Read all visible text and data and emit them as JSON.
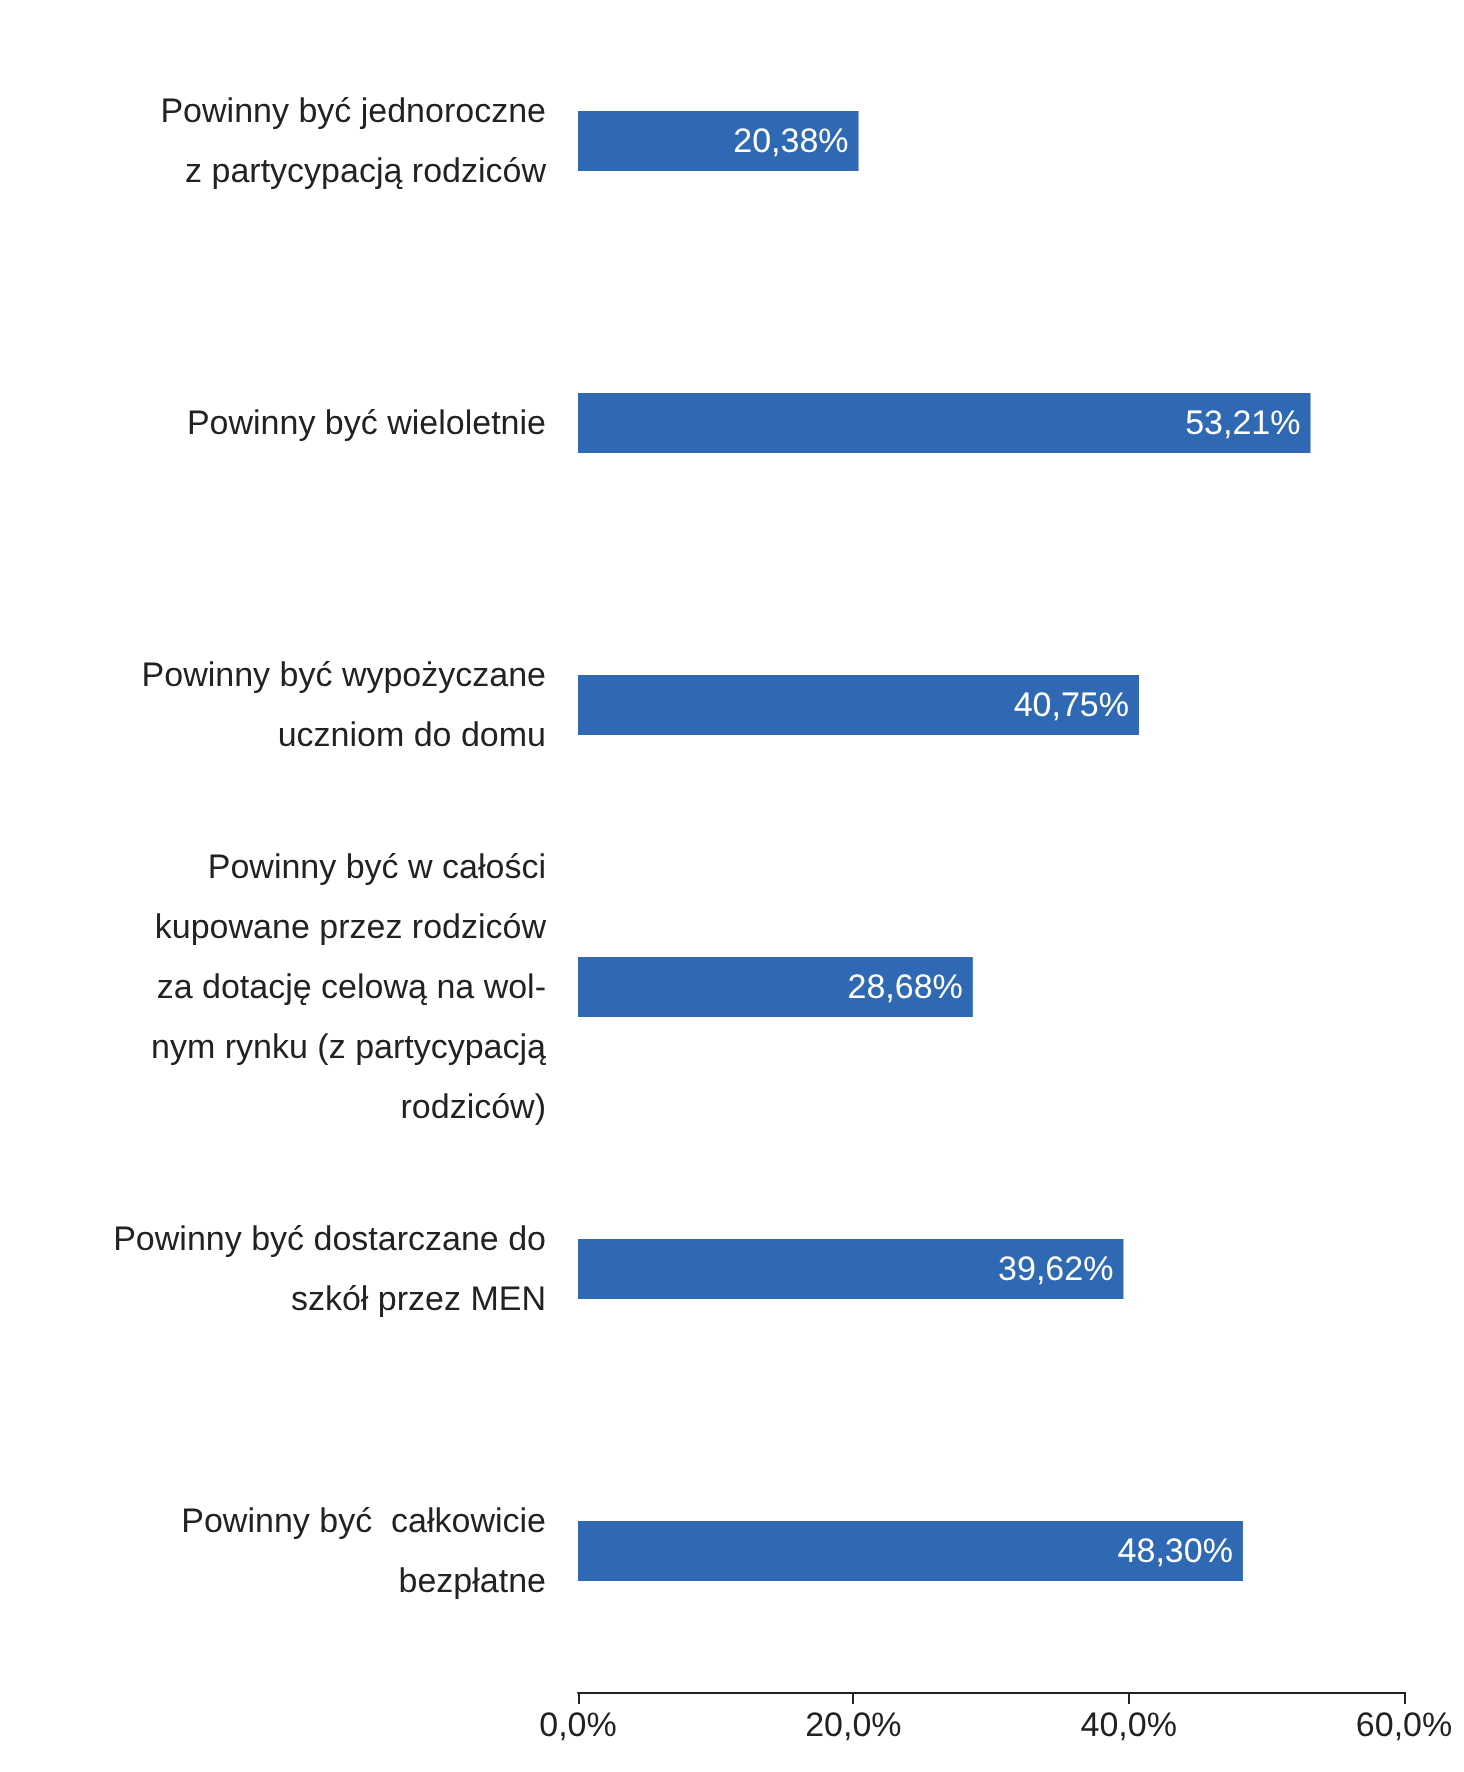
{
  "chart_data": {
    "type": "bar",
    "orientation": "horizontal",
    "categories": [
      "Powinny być jednoroczne\nz partycypacją rodziców",
      "Powinny być wieloletnie",
      "Powinny być wypożyczane\nuczniom do domu",
      "Powinny być w całości\nkupowane przez rodziców\nza dotację celową na wol-\nnym rynku (z partycypacją\nrodziców)",
      "Powinny być dostarczane do\nszkół przez MEN",
      "Powinny być  całkowicie\nbezpłatne"
    ],
    "values": [
      20.38,
      53.21,
      40.75,
      28.68,
      39.62,
      48.3
    ],
    "value_labels": [
      "20,38%",
      "53,21%",
      "40,75%",
      "28,68%",
      "39,62%",
      "48,30%"
    ],
    "color": "#2f69b3",
    "xlim": [
      0,
      60
    ],
    "xticks": [
      {
        "value": 0,
        "label": "0,0%"
      },
      {
        "value": 20,
        "label": "20,0%"
      },
      {
        "value": 40,
        "label": "40,0%"
      },
      {
        "value": 60,
        "label": "60,0%"
      }
    ],
    "grid": false
  }
}
